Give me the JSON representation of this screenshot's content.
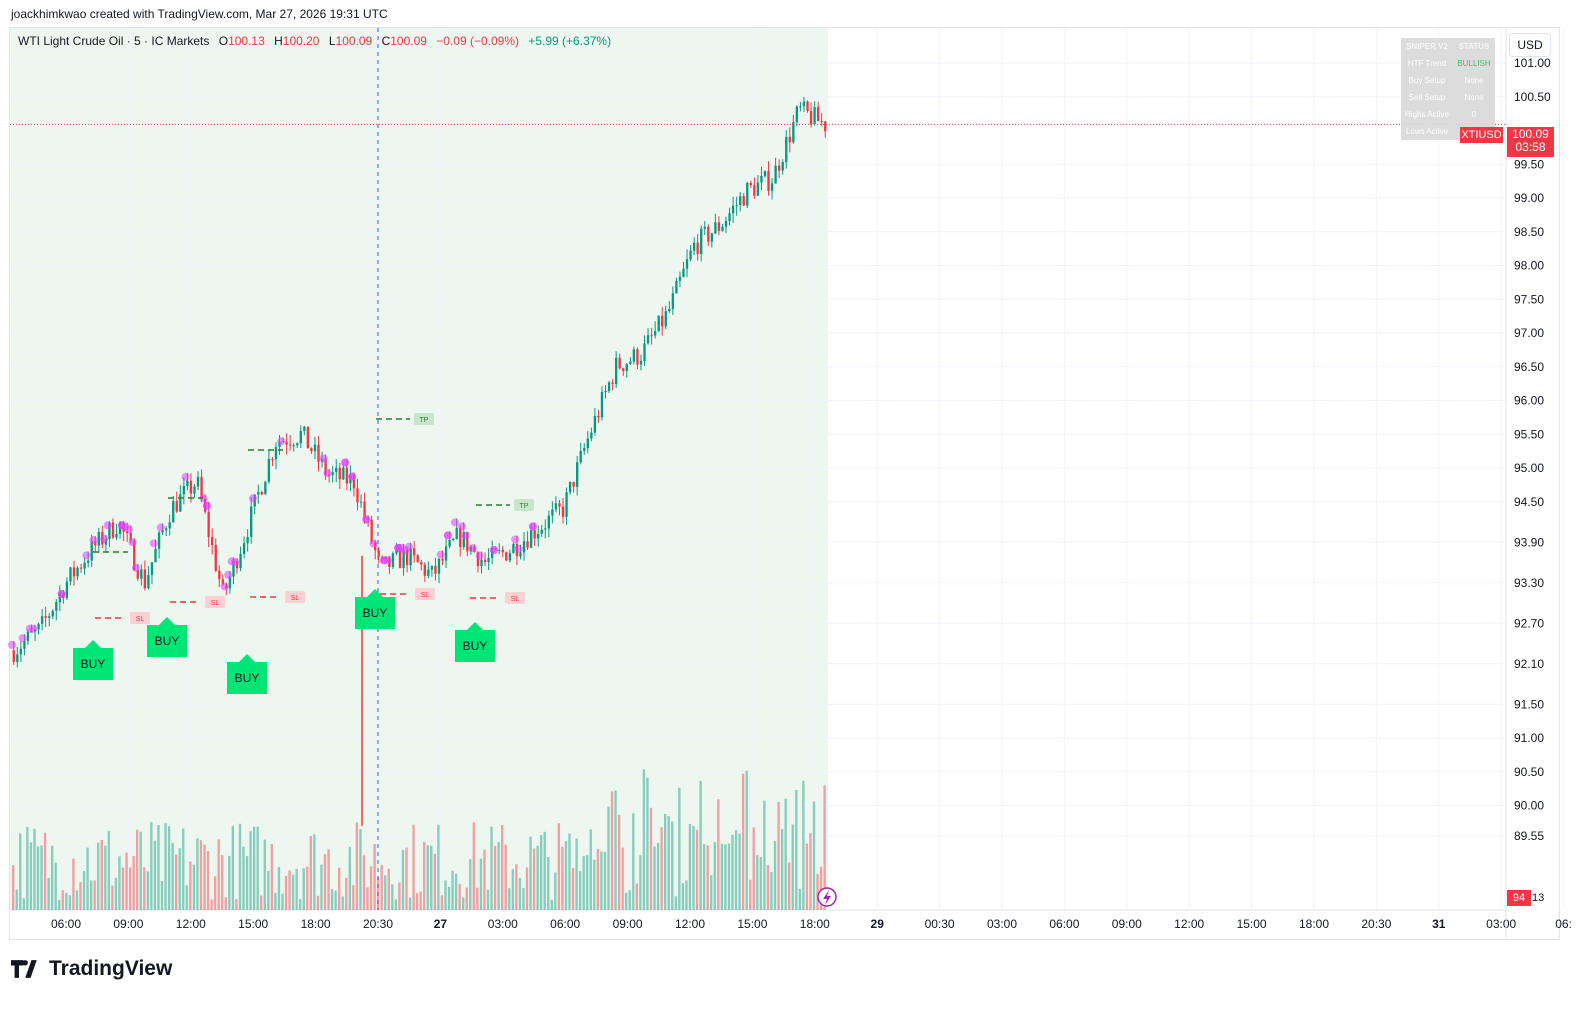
{
  "byline": "joackhimkwao created with TradingView.com, Mar 27, 2026 19:31 UTC",
  "legend": {
    "symbol": "WTI Light Crude Oil · 5 · IC Markets",
    "o_label": "O",
    "o": "100.13",
    "h_label": "H",
    "h": "100.20",
    "l_label": "L",
    "l": "100.09",
    "c_label": "C",
    "c": "100.09",
    "change": "−0.09 (−0.09%)",
    "change_day": "+5.99 (+6.37%)"
  },
  "currency": "USD",
  "last_price": {
    "symbol": "XTIUSD",
    "price": "100.09",
    "countdown": "03:58"
  },
  "volume_tag": {
    "value": "94",
    "tail": "13"
  },
  "status_table": {
    "header": [
      "SNIPER V2",
      "STATUS"
    ],
    "rows": [
      {
        "label": "HTF Trend",
        "value": "BULLISH"
      },
      {
        "label": "Buy Setup",
        "value": "None"
      },
      {
        "label": "Sell Setup",
        "value": "None"
      },
      {
        "label": "Highs Active",
        "value": "0"
      },
      {
        "label": "Lows Active",
        "value": ""
      }
    ]
  },
  "brand": "TradingView",
  "colors": {
    "up": "#089981",
    "down": "#f23645",
    "buy": "#00e676",
    "bg_zone": "#edf7ef",
    "pivot": "#e040fb"
  },
  "chart_data": {
    "type": "candlestick",
    "title": "WTI Light Crude Oil · 5 · IC Markets",
    "y_axis_ticks": [
      "101.00",
      "100.50",
      "99.50",
      "99.00",
      "98.50",
      "98.00",
      "97.50",
      "97.00",
      "96.50",
      "96.00",
      "95.50",
      "95.00",
      "94.50",
      "93.90",
      "93.30",
      "92.70",
      "92.10",
      "91.50",
      "91.00",
      "90.50",
      "90.00",
      "89.55"
    ],
    "x_axis_ticks": [
      "06:00",
      "09:00",
      "12:00",
      "15:00",
      "18:00",
      "20:30",
      "27",
      "03:00",
      "06:00",
      "09:00",
      "12:00",
      "15:00",
      "18:00",
      "29",
      "00:30",
      "03:00",
      "06:00",
      "09:00",
      "12:00",
      "15:00",
      "18:00",
      "20:30",
      "31",
      "03:00",
      "06:"
    ],
    "price_path": [
      {
        "t": "04:30",
        "p": 92.3
      },
      {
        "t": "06:00",
        "p": 92.6
      },
      {
        "t": "07:00",
        "p": 93.3
      },
      {
        "t": "08:30",
        "p": 93.8
      },
      {
        "t": "09:30",
        "p": 94.2
      },
      {
        "t": "11:00",
        "p": 93.3
      },
      {
        "t": "12:00",
        "p": 94.4
      },
      {
        "t": "13:00",
        "p": 94.8
      },
      {
        "t": "14:30",
        "p": 93.1
      },
      {
        "t": "15:30",
        "p": 94.2
      },
      {
        "t": "17:00",
        "p": 95.4
      },
      {
        "t": "18:00",
        "p": 95.5
      },
      {
        "t": "19:00",
        "p": 94.9
      },
      {
        "t": "20:00",
        "p": 94.8
      },
      {
        "t": "20:30",
        "p": 93.5
      },
      {
        "t": "21:30",
        "p": 93.7
      },
      {
        "t": "23:00",
        "p": 93.4
      },
      {
        "t": "00:30",
        "p": 94.0
      },
      {
        "t": "02:00",
        "p": 93.6
      },
      {
        "t": "03:00",
        "p": 93.8
      },
      {
        "t": "05:00",
        "p": 94.1
      },
      {
        "t": "06:00",
        "p": 94.4
      },
      {
        "t": "07:30",
        "p": 95.5
      },
      {
        "t": "09:00",
        "p": 96.5
      },
      {
        "t": "10:30",
        "p": 96.7
      },
      {
        "t": "12:00",
        "p": 97.3
      },
      {
        "t": "14:00",
        "p": 98.3
      },
      {
        "t": "15:30",
        "p": 98.6
      },
      {
        "t": "17:00",
        "p": 99.1
      },
      {
        "t": "18:00",
        "p": 99.3
      },
      {
        "t": "18:30",
        "p": 100.3
      },
      {
        "t": "19:30",
        "p": 100.09
      }
    ],
    "signals": [
      {
        "type": "BUY",
        "t": "07:00"
      },
      {
        "type": "BUY",
        "t": "11:00"
      },
      {
        "type": "BUY",
        "t": "14:30"
      },
      {
        "type": "BUY",
        "t": "20:30"
      },
      {
        "type": "BUY",
        "t": "03:00"
      }
    ],
    "tp_labels": [
      "TP",
      "TP"
    ],
    "sl_labels": [
      "SL",
      "SL",
      "SL",
      "SL",
      "SL"
    ],
    "last_value": 100.09
  }
}
